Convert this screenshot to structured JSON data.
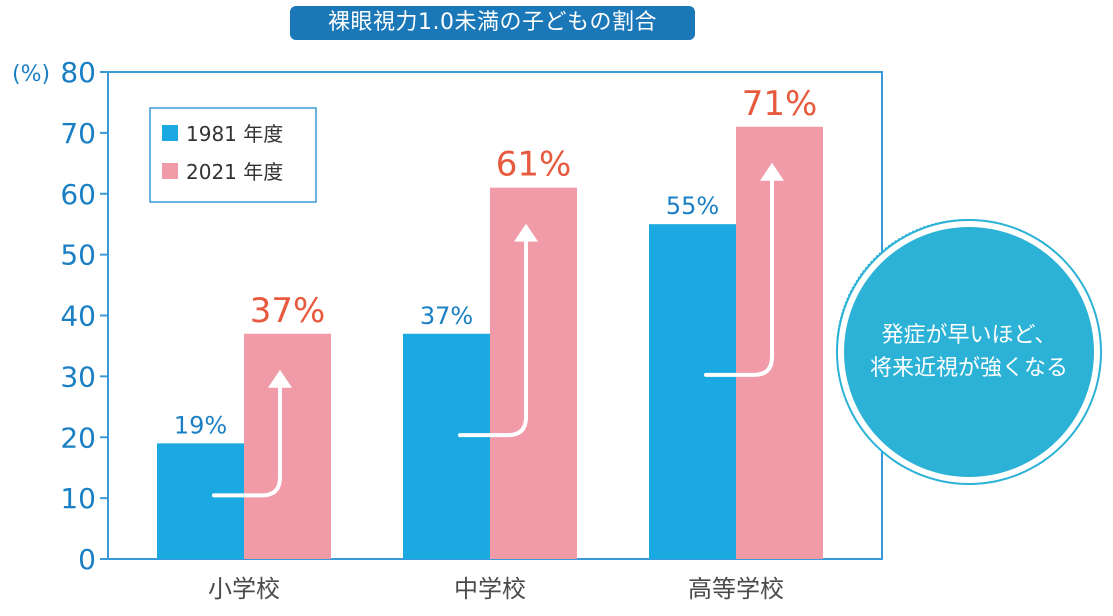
{
  "chart_data": {
    "type": "bar",
    "title": "裸眼視力1.0未満の子どもの割合",
    "y_unit_label": "(%)",
    "ylim": [
      0,
      80
    ],
    "yticks": [
      0,
      10,
      20,
      30,
      40,
      50,
      60,
      70,
      80
    ],
    "categories": [
      "小学校",
      "中学校",
      "高等学校"
    ],
    "series": [
      {
        "name": "1981 年度",
        "color": "#1aa9e0",
        "values": [
          19,
          37,
          55
        ],
        "labels": [
          "19%",
          "37%",
          "55%"
        ]
      },
      {
        "name": "2021 年度",
        "color": "#f19aa8",
        "values": [
          37,
          61,
          71
        ],
        "labels": [
          "37%",
          "61%",
          "71%"
        ]
      }
    ],
    "label_colors": {
      "1981 年度": "#1a7fc4",
      "2021 年度": "#e85a3e"
    },
    "legend_position": "top-left",
    "grid": false,
    "annotation": "発症が早いほど、\n将来近視が強くなる"
  }
}
